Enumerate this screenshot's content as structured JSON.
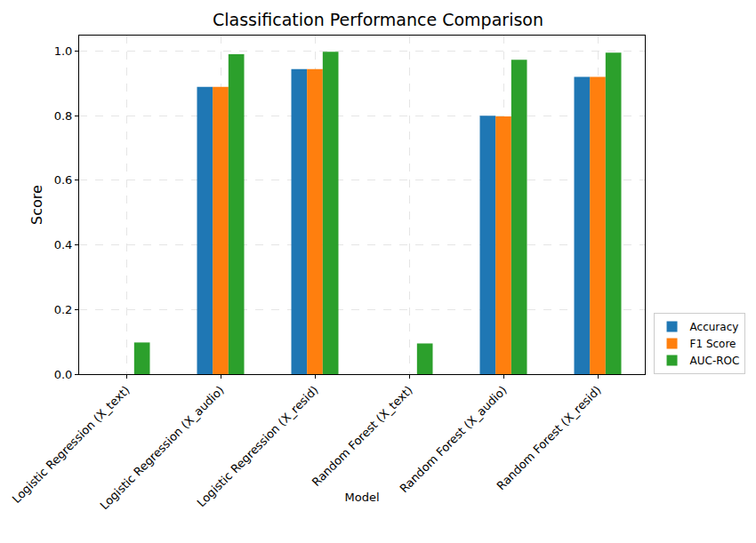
{
  "chart_data": {
    "type": "bar",
    "title": "Classification Performance Comparison",
    "x_label": "Model",
    "y_label": "Score",
    "categories": [
      "Logistic Regression (X_text)",
      "Logistic Regression (X_audio)",
      "Logistic Regression (X_resid)",
      "Random Forest (X_text)",
      "Random Forest (X_audio)",
      "Random Forest (X_resid)"
    ],
    "series": [
      {
        "name": "Accuracy",
        "color": "#1f77b4",
        "values": [
          0,
          0.889,
          0.944,
          0,
          0.8,
          0.92
        ]
      },
      {
        "name": "F1 Score",
        "color": "#ff7f0e",
        "values": [
          0,
          0.889,
          0.944,
          0,
          0.798,
          0.92
        ]
      },
      {
        "name": "AUC-ROC",
        "color": "#2ca02c",
        "values": [
          0.098,
          0.99,
          0.998,
          0.095,
          0.973,
          0.995
        ]
      }
    ],
    "ylim": [
      0,
      1.048
    ],
    "yticks": [
      {
        "value": 0,
        "label": "0.0"
      },
      0.2,
      0.4,
      0.6,
      0.8,
      {
        "value": 1,
        "label": "1.0"
      }
    ],
    "grid": true,
    "legend": "lower right"
  }
}
